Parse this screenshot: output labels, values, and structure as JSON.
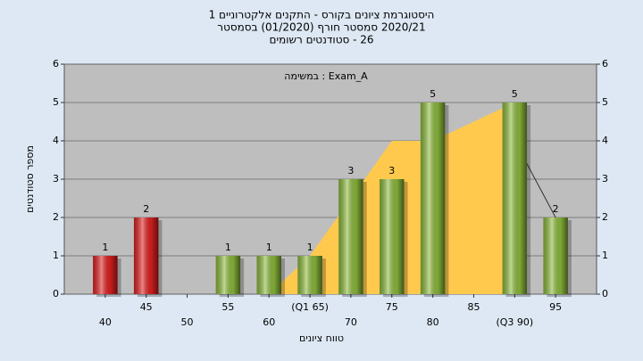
{
  "chart_data": {
    "type": "bar",
    "title": [
      "היסטוגרמת ציונים בקורס - התקנים אלקטרוניים 1",
      "2020/21 סמסטר חורף (01/2020) בסמסטר",
      "26 - סטודנטים רשומים"
    ],
    "annotation": "Exam_A : במשימה",
    "xlabel": "טווח ציונים",
    "ylabel": "מספר סטודנטים",
    "categories": [
      "40",
      "45",
      "50",
      "55",
      "60",
      "(Q1 65)",
      "70",
      "75",
      "80",
      "85",
      "(Q3 90)",
      "95"
    ],
    "values": [
      1,
      2,
      0,
      1,
      1,
      1,
      3,
      3,
      5,
      0,
      5,
      2
    ],
    "colors": [
      "#e02020",
      "#e02020",
      "#8dbb3c",
      "#8dbb3c",
      "#8dbb3c",
      "#8dbb3c",
      "#8dbb3c",
      "#8dbb3c",
      "#8dbb3c",
      "#8dbb3c",
      "#8dbb3c",
      "#8dbb3c"
    ],
    "area": {
      "color": "#ffc94d",
      "values": [
        null,
        null,
        null,
        null,
        0,
        1,
        2.5,
        4,
        4,
        4.5,
        5,
        null
      ]
    },
    "line": {
      "color": "#333333",
      "values": [
        null,
        null,
        null,
        null,
        null,
        null,
        null,
        null,
        null,
        null,
        4,
        2
      ]
    },
    "ylim": [
      0,
      6
    ],
    "yticks": [
      0,
      1,
      2,
      3,
      4,
      5,
      6
    ],
    "y2lim": [
      0,
      6
    ],
    "y2ticks": [
      0,
      1,
      2,
      3,
      4,
      5,
      6
    ],
    "grid": true
  }
}
